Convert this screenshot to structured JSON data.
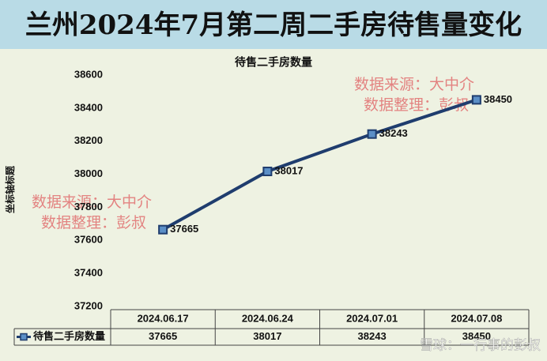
{
  "page_title": "兰州2024年7月第二周二手房待售量变化",
  "chart_data": {
    "type": "line",
    "title": "待售二手房数量",
    "y_axis_label": "坐标轴标题",
    "categories": [
      "2024.06.17",
      "2024.06.24",
      "2024.07.01",
      "2024.07.08"
    ],
    "series": [
      {
        "name": "待售二手房数量",
        "color": "#1f3d6e",
        "values": [
          37665,
          38017,
          38243,
          38450
        ]
      }
    ],
    "ylim": [
      37200,
      38600
    ],
    "yticks": [
      37200,
      37400,
      37600,
      37800,
      38000,
      38200,
      38400,
      38600
    ],
    "data_table": true,
    "annotations": [
      "数据来源：大中介",
      "数据整理：彭叔",
      "数据来源：大中介",
      "数据整理：彭叔"
    ]
  },
  "watermark": "雪球：一行事的彭叔"
}
